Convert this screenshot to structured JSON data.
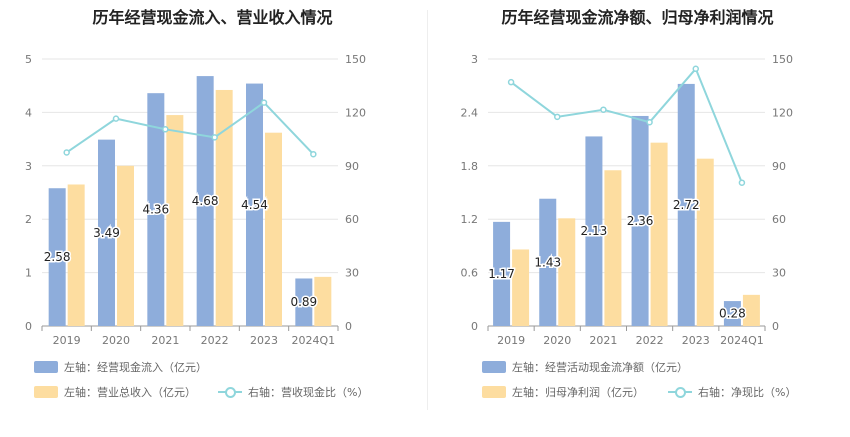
{
  "colors": {
    "bar_a": "#8eaddb",
    "bar_b": "#fddda0",
    "line": "#8fd6dc"
  },
  "chart_data": [
    {
      "type": "bar",
      "title": "历年经营现金流入、营业收入情况",
      "categories": [
        "2019",
        "2020",
        "2021",
        "2022",
        "2023",
        "2024Q1"
      ],
      "left_axis": {
        "min": 0,
        "max": 5,
        "ticks": [
          "0",
          "1",
          "2",
          "3",
          "4",
          "5"
        ]
      },
      "right_axis": {
        "min": 0,
        "max": 150,
        "ticks": [
          "0",
          "30",
          "60",
          "90",
          "120",
          "150"
        ]
      },
      "series": [
        {
          "name": "左轴：经营现金流入（亿元）",
          "axis": "left",
          "kind": "bar",
          "values": [
            2.58,
            3.49,
            4.36,
            4.68,
            4.54,
            0.89
          ],
          "labels": [
            "2.58",
            "3.49",
            "4.36",
            "4.68",
            "4.54",
            "0.89"
          ]
        },
        {
          "name": "左轴：营业总收入（亿元）",
          "axis": "left",
          "kind": "bar",
          "values": [
            2.65,
            3.0,
            3.95,
            4.42,
            3.62,
            0.92
          ]
        },
        {
          "name": "右轴：营收现金比（%）",
          "axis": "right",
          "kind": "line",
          "values": [
            97.5,
            116.5,
            110.5,
            106,
            125.5,
            96.5
          ]
        }
      ]
    },
    {
      "type": "bar",
      "title": "历年经营现金流净额、归母净利润情况",
      "categories": [
        "2019",
        "2020",
        "2021",
        "2022",
        "2023",
        "2024Q1"
      ],
      "left_axis": {
        "min": 0,
        "max": 3,
        "ticks": [
          "0",
          "0.6",
          "1.2",
          "1.8",
          "2.4",
          "3"
        ]
      },
      "right_axis": {
        "min": 0,
        "max": 150,
        "ticks": [
          "0",
          "30",
          "60",
          "90",
          "120",
          "150"
        ]
      },
      "series": [
        {
          "name": "左轴：经营活动现金流净额（亿元）",
          "axis": "left",
          "kind": "bar",
          "values": [
            1.17,
            1.43,
            2.13,
            2.36,
            2.72,
            0.28
          ],
          "labels": [
            "1.17",
            "1.43",
            "2.13",
            "2.36",
            "2.72",
            "0.28"
          ]
        },
        {
          "name": "左轴：归母净利润（亿元）",
          "axis": "left",
          "kind": "bar",
          "values": [
            0.86,
            1.21,
            1.75,
            2.06,
            1.88,
            0.35
          ]
        },
        {
          "name": "右轴：净现比（%）",
          "axis": "right",
          "kind": "line",
          "values": [
            137,
            117.5,
            121.5,
            114.5,
            144.5,
            80.5
          ]
        }
      ]
    }
  ]
}
